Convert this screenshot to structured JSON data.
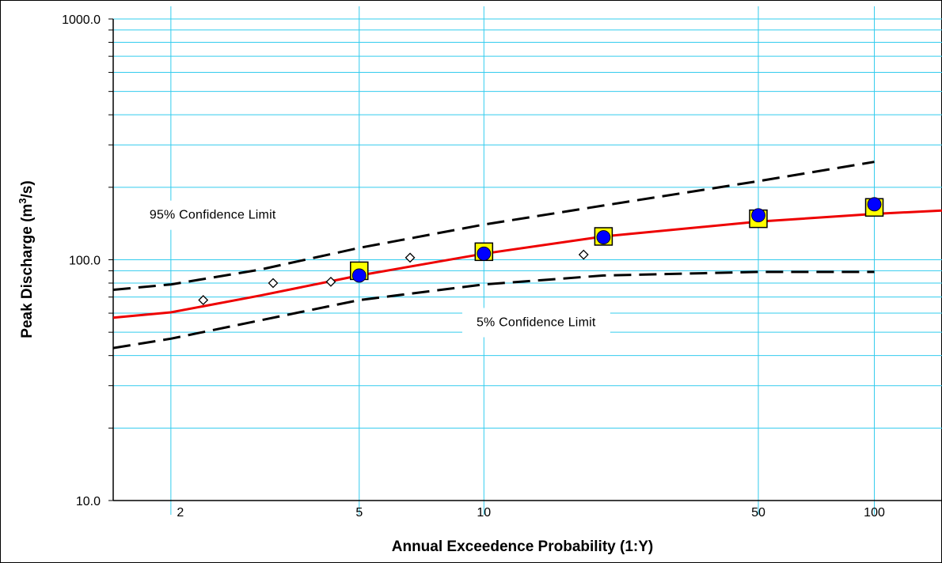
{
  "chart_data": {
    "type": "scatter",
    "title": "",
    "xlabel": "Annual Exceedence Probability  (1:Y)",
    "ylabel_parts": {
      "base": "Peak Discharge (m",
      "sup": "3",
      "tail": "/s)"
    },
    "x_scale": "gumbel-return-period",
    "y_scale": "log",
    "xlim": [
      1.6,
      150
    ],
    "ylim": [
      10.0,
      1000.0
    ],
    "y_ticks": [
      {
        "value": 10,
        "label": "10.0"
      },
      {
        "value": 100,
        "label": "100.0"
      },
      {
        "value": 1000,
        "label": "1000.0"
      }
    ],
    "x_ticks": [
      {
        "value": 2,
        "label": "2"
      },
      {
        "value": 5,
        "label": "5"
      },
      {
        "value": 10,
        "label": "10"
      },
      {
        "value": 50,
        "label": "50"
      },
      {
        "value": 100,
        "label": "100"
      }
    ],
    "x_gridlines": [
      2,
      5,
      10,
      50,
      100
    ],
    "y_gridlines": [
      20,
      30,
      40,
      50,
      60,
      70,
      80,
      90,
      100,
      200,
      300,
      400,
      500,
      600,
      700,
      800,
      900,
      1000
    ],
    "grid": true,
    "colors": {
      "grid": "#33ccee",
      "fit_line": "#ee0000",
      "confidence": "#000000",
      "square_fill": "#ffff00",
      "circle_fill": "#0000ff",
      "observed_fill": "#ffffff"
    },
    "series": [
      {
        "kind": "fit_line",
        "x": [
          1.6,
          2,
          3,
          5,
          10,
          20,
          50,
          100,
          150
        ],
        "y": [
          57.5,
          60.5,
          71,
          86,
          106,
          125,
          144,
          155,
          160
        ]
      },
      {
        "kind": "confidence",
        "name": "95% Confidence Limit",
        "x": [
          1.6,
          2,
          3,
          5,
          10,
          20,
          50,
          100
        ],
        "y": [
          75,
          79,
          91,
          112,
          140,
          168,
          212,
          255
        ]
      },
      {
        "kind": "confidence",
        "name": "5% Confidence Limit",
        "x": [
          1.6,
          2,
          3,
          5,
          10,
          20,
          50,
          100
        ],
        "y": [
          43,
          47,
          56,
          68,
          79,
          86,
          89,
          89
        ]
      },
      {
        "kind": "observed",
        "x": [
          2.3,
          3.2,
          4.3,
          6.6,
          17.8
        ],
        "y": [
          68,
          80,
          81,
          102,
          105
        ]
      },
      {
        "kind": "squares",
        "x": [
          5,
          10,
          20,
          50,
          100
        ],
        "y": [
          90,
          108,
          125,
          148,
          165
        ]
      },
      {
        "kind": "circles",
        "x": [
          5,
          10,
          20,
          50,
          100
        ],
        "y": [
          86,
          106,
          124,
          153,
          170
        ]
      }
    ],
    "annotations": [
      {
        "text": "95% Confidence Limit",
        "x": 2.4,
        "y": 148
      },
      {
        "text": "5% Confidence Limit",
        "x": 13.5,
        "y": 53
      }
    ]
  }
}
